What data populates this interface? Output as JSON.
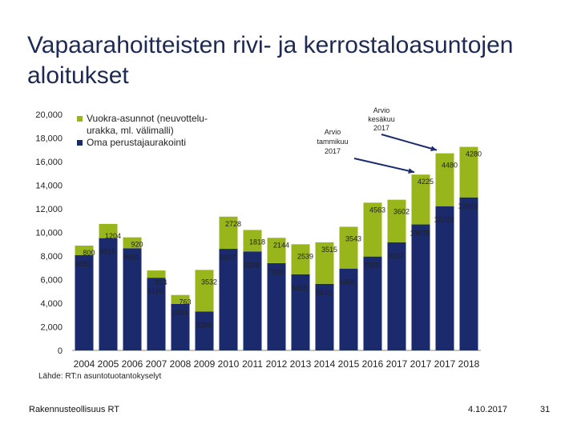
{
  "title": "Vapaarahoitteisten rivi- ja kerrostaloasuntojen aloitukset",
  "source": "Lähde: RT:n asuntotuotantokyselyt",
  "footer": {
    "organization": "Rakennusteollisuus RT",
    "date": "4.10.2017",
    "page": "31"
  },
  "colors": {
    "navy": "#1a2a6c",
    "olive": "#98b51c"
  },
  "annotations": [
    {
      "text_lines": [
        "Arvio",
        "tammikuu",
        "2017"
      ],
      "target": "2017a"
    },
    {
      "text_lines": [
        "Arvio",
        "kesäkuu",
        "2017"
      ],
      "target": "2017b"
    }
  ],
  "chart_data": {
    "type": "bar",
    "stacked": true,
    "title": "Vapaarahoitteisten rivi- ja kerrostaloasuntojen aloitukset",
    "categories": [
      "2004",
      "2005",
      "2006",
      "2007",
      "2008",
      "2009",
      "2010",
      "2011",
      "2012",
      "2013",
      "2014",
      "2015",
      "2016",
      "2017",
      "2017",
      "2017",
      "2018"
    ],
    "series": [
      {
        "name": "Oma perustajaurakointi",
        "color": "#1a2a6c",
        "values": [
          8081,
          9515,
          8661,
          6160,
          3934,
          3289,
          8607,
          8388,
          7395,
          6455,
          5642,
          6935,
          7956,
          9167,
          10675,
          12223,
          12969
        ],
        "labels": [
          "8081",
          "9515",
          "8661",
          "6160",
          "3934",
          "3289",
          "8607",
          "8388",
          "7395",
          "6455",
          "5642",
          "6935",
          "7956",
          "9167",
          "10675",
          "12223",
          "12969"
        ]
      },
      {
        "name": "Vuokra-asunnot (neuvottelu-urakka, ml. välimalli)",
        "color": "#98b51c",
        "values": [
          800,
          1204,
          920,
          614,
          763,
          3532,
          2728,
          1818,
          2144,
          2539,
          3515,
          3543,
          4563,
          3602,
          4225,
          4480,
          4280
        ],
        "labels": [
          "800",
          "1204",
          "920",
          "614",
          "763",
          "3532",
          "2728",
          "1818",
          "2144",
          "2539",
          "3515",
          "3543",
          "4563",
          "3602",
          "4225",
          "4480",
          "4280"
        ]
      }
    ],
    "legend": [
      {
        "text": "Vuokra-asunnot (neuvottelu-urakka, ml. välimalli)",
        "color": "#98b51c"
      },
      {
        "text": "Oma perustajaurakointi",
        "color": "#1a2a6c"
      }
    ],
    "legend_position": "top-left",
    "yticks": [
      "0",
      "2,000",
      "4,000",
      "6,000",
      "8,000",
      "10,000",
      "12,000",
      "14,000",
      "16,000",
      "18,000",
      "20,000"
    ],
    "ylim": [
      0,
      20000
    ],
    "xlabel": "",
    "ylabel": ""
  }
}
